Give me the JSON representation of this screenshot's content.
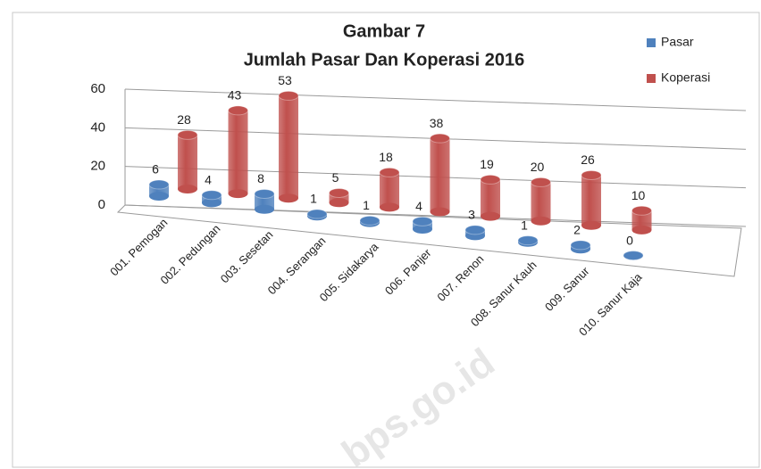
{
  "chart_data": {
    "type": "bar3d",
    "title": "Gambar 7",
    "subtitle": "Jumlah Pasar Dan Koperasi 2016",
    "watermark": "bps.go.id",
    "categories": [
      "001. Pemogan",
      "002. Pedungan",
      "003. Sesetan",
      "004. Serangan",
      "005. Sidakarya",
      "006. Panjer",
      "007. Renon",
      "008. Sanur Kauh",
      "009. Sanur",
      "010. Sanur Kaja"
    ],
    "series": [
      {
        "name": "Pasar",
        "color": "#4f81bd",
        "values": [
          6,
          4,
          8,
          1,
          1,
          4,
          3,
          1,
          2,
          0
        ]
      },
      {
        "name": "Koperasi",
        "color": "#c0504d",
        "values": [
          28,
          43,
          53,
          5,
          18,
          38,
          19,
          20,
          26,
          10
        ]
      }
    ],
    "ylim": [
      0,
      60
    ],
    "yticks": [
      0,
      20,
      40,
      60
    ],
    "grid": true,
    "legend": "right"
  }
}
